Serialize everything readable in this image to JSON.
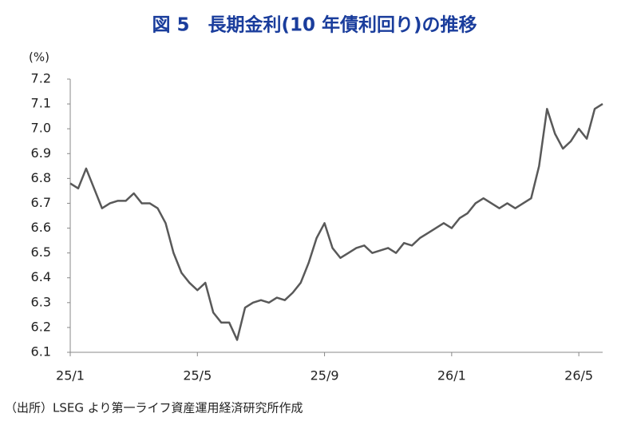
{
  "chart_data": {
    "type": "line",
    "title": "図 5　長期金利(10 年債利回り)の推移",
    "y_label": "(%)",
    "source": "（出所）LSEG より第一ライフ資産運用経済研究所作成",
    "categories": [
      "25/1",
      null,
      null,
      null,
      null,
      null,
      null,
      null,
      null,
      null,
      null,
      null,
      null,
      null,
      null,
      null,
      "25/5",
      null,
      null,
      null,
      null,
      null,
      null,
      null,
      null,
      null,
      null,
      null,
      null,
      null,
      null,
      null,
      "25/9",
      null,
      null,
      null,
      null,
      null,
      null,
      null,
      null,
      null,
      null,
      null,
      null,
      null,
      null,
      null,
      "26/1",
      null,
      null,
      null,
      null,
      null,
      null,
      null,
      null,
      null,
      null,
      null,
      null,
      null,
      null,
      null,
      "26/5",
      null,
      null,
      null
    ],
    "series": [
      {
        "name": "長期金利",
        "color": "#595959",
        "values": [
          6.78,
          6.76,
          6.84,
          6.76,
          6.68,
          6.7,
          6.71,
          6.71,
          6.74,
          6.7,
          6.7,
          6.68,
          6.62,
          6.5,
          6.42,
          6.38,
          6.35,
          6.38,
          6.26,
          6.22,
          6.22,
          6.15,
          6.28,
          6.3,
          6.31,
          6.3,
          6.32,
          6.31,
          6.34,
          6.38,
          6.46,
          6.56,
          6.62,
          6.52,
          6.48,
          6.5,
          6.52,
          6.53,
          6.5,
          6.51,
          6.52,
          6.5,
          6.54,
          6.53,
          6.56,
          6.58,
          6.6,
          6.62,
          6.6,
          6.64,
          6.66,
          6.7,
          6.72,
          6.7,
          6.68,
          6.7,
          6.68,
          6.7,
          6.72,
          6.85,
          7.08,
          6.98,
          6.92,
          6.95,
          7.0,
          6.96,
          7.08,
          7.1
        ]
      }
    ],
    "ylim": [
      6.1,
      7.2
    ],
    "yticks": [
      6.1,
      6.2,
      6.3,
      6.4,
      6.5,
      6.6,
      6.7,
      6.8,
      6.9,
      {
        "value": 7.0,
        "label": "7.0"
      },
      7.1,
      7.2
    ],
    "grid": false
  }
}
